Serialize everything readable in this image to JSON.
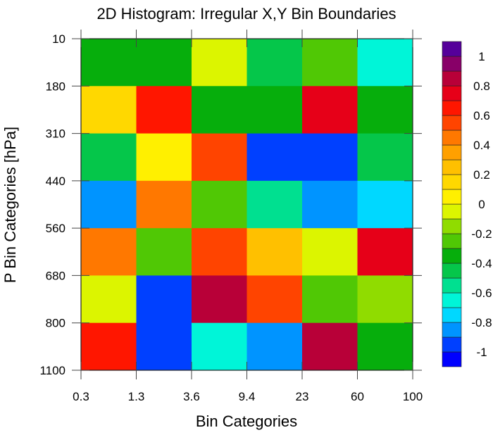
{
  "chart_data": {
    "type": "heatmap",
    "title": "2D Histogram: Irregular X,Y Bin Boundaries",
    "xlabel": "Bin Categories",
    "ylabel": "P Bin Categories [hPa]",
    "x_tick_labels": [
      "0.3",
      "1.3",
      "3.6",
      "9.4",
      "23",
      "60",
      "100"
    ],
    "y_tick_labels": [
      "10",
      "180",
      "310",
      "440",
      "560",
      "680",
      "800",
      "1100"
    ],
    "values": [
      [
        -0.35,
        -0.35,
        -0.05,
        -0.45,
        -0.25,
        -0.65
      ],
      [
        0.15,
        0.65,
        -0.35,
        -0.35,
        0.75,
        -0.35
      ],
      [
        -0.45,
        0.05,
        0.55,
        -0.95,
        -0.95,
        -0.45
      ],
      [
        -0.85,
        0.45,
        -0.25,
        -0.55,
        -0.85,
        -0.75
      ],
      [
        0.45,
        -0.25,
        0.55,
        0.25,
        -0.05,
        0.75
      ],
      [
        -0.05,
        -0.95,
        0.85,
        0.55,
        -0.25,
        -0.15
      ],
      [
        0.65,
        -0.95,
        -0.65,
        -0.85,
        0.85,
        -0.35
      ]
    ],
    "levels": [
      -1,
      -0.9,
      -0.8,
      -0.7,
      -0.6,
      -0.5,
      -0.4,
      -0.3,
      -0.2,
      -0.1,
      0,
      0.1,
      0.2,
      0.3,
      0.4,
      0.5,
      0.6,
      0.7,
      0.8,
      0.9,
      1
    ],
    "colorbar_labels": [
      "-1",
      "-0.8",
      "-0.6",
      "-0.4",
      "-0.2",
      "0",
      "0.2",
      "0.4",
      "0.6",
      "0.8",
      "1"
    ],
    "colors": [
      "#0000ff",
      "#0040ff",
      "#0094ff",
      "#00d8ff",
      "#00f5d8",
      "#00e090",
      "#05c64a",
      "#06ae0c",
      "#50c805",
      "#90dc00",
      "#dcf500",
      "#fff000",
      "#ffd800",
      "#ffc000",
      "#ffa000",
      "#ff7800",
      "#ff4400",
      "#ff1600",
      "#e60018",
      "#b80038",
      "#880068",
      "#55009a"
    ],
    "legend_placement": "right",
    "grid": false
  }
}
